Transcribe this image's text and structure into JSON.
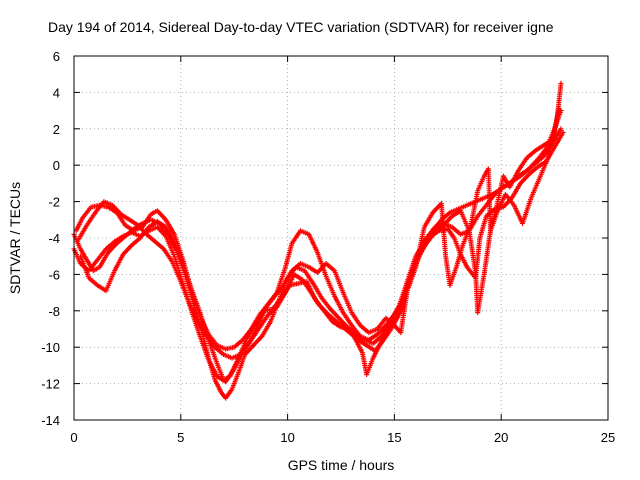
{
  "chart_data": {
    "type": "scatter",
    "title": "Day 194 of 2014, Sidereal Day-to-day VTEC variation (SDTVAR) for receiver igne",
    "xlabel": "GPS time / hours",
    "ylabel": "SDTVAR / TECUs",
    "xlim": [
      0,
      25
    ],
    "ylim": [
      -14,
      6
    ],
    "xticks": [
      0,
      5,
      10,
      15,
      20,
      25
    ],
    "yticks": [
      -14,
      -12,
      -10,
      -8,
      -6,
      -4,
      -2,
      0,
      2,
      4,
      6
    ],
    "grid": true,
    "marker": "+",
    "series": [
      {
        "name": "trace-a",
        "color": "#ff0000",
        "points": [
          [
            0.0,
            -3.8
          ],
          [
            0.3,
            -4.6
          ],
          [
            0.6,
            -5.2
          ],
          [
            0.9,
            -5.8
          ],
          [
            1.2,
            -5.6
          ],
          [
            1.6,
            -4.8
          ],
          [
            2.0,
            -4.3
          ],
          [
            2.4,
            -3.9
          ],
          [
            2.8,
            -3.5
          ],
          [
            3.2,
            -3.2
          ],
          [
            3.6,
            -3.0
          ],
          [
            4.0,
            -3.2
          ],
          [
            4.4,
            -3.8
          ],
          [
            4.8,
            -4.7
          ],
          [
            5.2,
            -6.0
          ],
          [
            5.6,
            -7.6
          ],
          [
            6.0,
            -9.2
          ],
          [
            6.3,
            -10.6
          ],
          [
            6.6,
            -11.8
          ],
          [
            6.9,
            -12.5
          ],
          [
            7.1,
            -12.8
          ],
          [
            7.4,
            -12.3
          ],
          [
            7.7,
            -11.4
          ],
          [
            8.0,
            -10.4
          ],
          [
            8.4,
            -9.9
          ],
          [
            8.8,
            -9.4
          ],
          [
            9.2,
            -8.6
          ],
          [
            9.6,
            -7.4
          ],
          [
            10.0,
            -6.2
          ],
          [
            10.4,
            -5.6
          ],
          [
            10.8,
            -5.8
          ],
          [
            11.2,
            -6.5
          ],
          [
            11.6,
            -7.3
          ],
          [
            12.0,
            -7.9
          ],
          [
            12.4,
            -8.4
          ],
          [
            12.8,
            -8.9
          ],
          [
            13.2,
            -9.3
          ],
          [
            13.6,
            -9.6
          ],
          [
            14.0,
            -9.8
          ],
          [
            14.4,
            -9.4
          ],
          [
            14.8,
            -8.6
          ],
          [
            15.2,
            -7.8
          ],
          [
            15.6,
            -6.4
          ],
          [
            16.0,
            -5.0
          ],
          [
            16.4,
            -4.2
          ],
          [
            16.8,
            -3.6
          ],
          [
            17.2,
            -3.0
          ],
          [
            17.6,
            -2.6
          ],
          [
            18.0,
            -2.4
          ],
          [
            18.4,
            -2.2
          ],
          [
            18.8,
            -2.0
          ],
          [
            19.2,
            -1.8
          ],
          [
            19.6,
            -1.6
          ],
          [
            20.0,
            -1.3
          ],
          [
            20.4,
            -1.0
          ],
          [
            20.8,
            -0.6
          ],
          [
            21.2,
            -0.3
          ],
          [
            21.6,
            0.1
          ],
          [
            22.0,
            0.5
          ],
          [
            22.4,
            1.2
          ],
          [
            22.8,
            2.0
          ]
        ]
      },
      {
        "name": "trace-b",
        "color": "#ff0000",
        "points": [
          [
            0.1,
            -3.6
          ],
          [
            0.4,
            -2.9
          ],
          [
            0.8,
            -2.3
          ],
          [
            1.2,
            -2.2
          ],
          [
            1.6,
            -2.3
          ],
          [
            2.0,
            -2.6
          ],
          [
            2.4,
            -3.3
          ],
          [
            2.8,
            -3.6
          ],
          [
            3.2,
            -3.4
          ],
          [
            3.6,
            -2.7
          ],
          [
            3.9,
            -2.5
          ],
          [
            4.3,
            -3.0
          ],
          [
            4.7,
            -3.8
          ],
          [
            5.1,
            -5.2
          ],
          [
            5.5,
            -6.9
          ],
          [
            5.9,
            -8.3
          ],
          [
            6.3,
            -9.3
          ],
          [
            6.7,
            -9.9
          ],
          [
            7.1,
            -10.1
          ],
          [
            7.5,
            -10.0
          ],
          [
            7.9,
            -9.6
          ],
          [
            8.3,
            -9.0
          ],
          [
            8.7,
            -8.2
          ],
          [
            9.1,
            -7.6
          ],
          [
            9.5,
            -7.0
          ],
          [
            9.9,
            -5.6
          ],
          [
            10.2,
            -4.3
          ],
          [
            10.6,
            -3.6
          ],
          [
            11.0,
            -3.8
          ],
          [
            11.4,
            -4.8
          ],
          [
            11.8,
            -6.1
          ],
          [
            12.2,
            -7.2
          ],
          [
            12.6,
            -8.1
          ],
          [
            13.0,
            -8.8
          ],
          [
            13.4,
            -9.4
          ],
          [
            13.8,
            -9.6
          ],
          [
            14.2,
            -9.3
          ],
          [
            14.6,
            -8.8
          ],
          [
            15.0,
            -8.2
          ],
          [
            15.3,
            -7.6
          ],
          [
            15.7,
            -6.3
          ],
          [
            16.1,
            -5.0
          ],
          [
            16.5,
            -4.0
          ],
          [
            16.9,
            -3.4
          ],
          [
            17.3,
            -3.2
          ],
          [
            17.7,
            -3.4
          ],
          [
            18.1,
            -3.8
          ],
          [
            18.5,
            -3.6
          ],
          [
            18.9,
            -2.8
          ],
          [
            19.3,
            -2.2
          ],
          [
            19.7,
            -1.6
          ],
          [
            20.1,
            -1.2
          ],
          [
            20.5,
            -0.9
          ],
          [
            20.9,
            -0.6
          ],
          [
            21.3,
            -0.2
          ],
          [
            21.7,
            0.3
          ],
          [
            22.1,
            0.9
          ],
          [
            22.5,
            2.0
          ],
          [
            22.8,
            3.0
          ]
        ]
      },
      {
        "name": "trace-c",
        "color": "#ff0000",
        "points": [
          [
            0.0,
            -4.6
          ],
          [
            0.3,
            -5.4
          ],
          [
            0.7,
            -5.8
          ],
          [
            1.1,
            -5.2
          ],
          [
            1.5,
            -4.6
          ],
          [
            1.9,
            -4.2
          ],
          [
            2.3,
            -3.9
          ],
          [
            2.7,
            -3.7
          ],
          [
            3.1,
            -3.9
          ],
          [
            3.5,
            -3.6
          ],
          [
            3.9,
            -3.4
          ],
          [
            4.3,
            -3.9
          ],
          [
            4.7,
            -5.0
          ],
          [
            5.1,
            -6.5
          ],
          [
            5.5,
            -8.0
          ],
          [
            5.9,
            -9.4
          ],
          [
            6.3,
            -10.7
          ],
          [
            6.7,
            -11.6
          ],
          [
            7.1,
            -11.9
          ],
          [
            7.5,
            -11.2
          ],
          [
            7.9,
            -10.2
          ],
          [
            8.3,
            -9.6
          ],
          [
            8.7,
            -8.9
          ],
          [
            9.1,
            -8.2
          ],
          [
            9.5,
            -7.8
          ],
          [
            9.9,
            -7.0
          ],
          [
            10.3,
            -6.0
          ],
          [
            10.7,
            -6.3
          ],
          [
            11.1,
            -7.0
          ],
          [
            11.5,
            -7.7
          ],
          [
            11.9,
            -8.2
          ],
          [
            12.3,
            -8.6
          ],
          [
            12.7,
            -9.0
          ],
          [
            13.1,
            -9.4
          ],
          [
            13.5,
            -10.3
          ],
          [
            13.7,
            -11.5
          ],
          [
            14.0,
            -10.6
          ],
          [
            14.3,
            -9.9
          ],
          [
            14.7,
            -9.0
          ],
          [
            15.1,
            -8.4
          ],
          [
            15.5,
            -7.2
          ],
          [
            15.9,
            -5.8
          ],
          [
            16.3,
            -4.6
          ],
          [
            16.7,
            -3.9
          ],
          [
            17.1,
            -3.6
          ],
          [
            17.5,
            -3.5
          ],
          [
            17.8,
            -4.0
          ],
          [
            18.1,
            -4.9
          ],
          [
            18.4,
            -5.6
          ],
          [
            18.8,
            -6.2
          ],
          [
            19.0,
            -4.0
          ],
          [
            19.3,
            -2.8
          ],
          [
            19.7,
            -2.4
          ],
          [
            20.1,
            -2.3
          ],
          [
            20.5,
            -1.8
          ],
          [
            20.9,
            -1.0
          ],
          [
            21.3,
            -0.5
          ],
          [
            21.7,
            -0.1
          ],
          [
            22.1,
            0.2
          ],
          [
            22.5,
            1.0
          ],
          [
            22.9,
            1.8
          ]
        ]
      },
      {
        "name": "trace-d",
        "color": "#ff0000",
        "points": [
          [
            0.2,
            -4.1
          ],
          [
            0.6,
            -3.3
          ],
          [
            1.0,
            -2.6
          ],
          [
            1.4,
            -2.0
          ],
          [
            1.8,
            -2.2
          ],
          [
            2.2,
            -2.7
          ],
          [
            2.6,
            -3.0
          ],
          [
            3.0,
            -3.3
          ],
          [
            3.4,
            -3.8
          ],
          [
            3.8,
            -4.2
          ],
          [
            4.2,
            -4.6
          ],
          [
            4.6,
            -5.3
          ],
          [
            5.0,
            -6.4
          ],
          [
            5.4,
            -7.6
          ],
          [
            5.8,
            -8.6
          ],
          [
            6.2,
            -9.4
          ],
          [
            6.6,
            -10.0
          ],
          [
            7.0,
            -10.4
          ],
          [
            7.4,
            -10.6
          ],
          [
            7.8,
            -10.4
          ],
          [
            8.2,
            -9.8
          ],
          [
            8.6,
            -8.8
          ],
          [
            9.0,
            -7.8
          ],
          [
            9.4,
            -7.2
          ],
          [
            9.8,
            -6.6
          ],
          [
            10.2,
            -5.8
          ],
          [
            10.6,
            -5.4
          ],
          [
            11.0,
            -5.6
          ],
          [
            11.4,
            -5.9
          ],
          [
            11.8,
            -5.4
          ],
          [
            12.2,
            -5.8
          ],
          [
            12.6,
            -7.0
          ],
          [
            13.0,
            -8.1
          ],
          [
            13.4,
            -8.8
          ],
          [
            13.8,
            -9.2
          ],
          [
            14.2,
            -9.0
          ],
          [
            14.6,
            -8.4
          ],
          [
            15.0,
            -8.8
          ],
          [
            15.3,
            -9.2
          ],
          [
            15.6,
            -6.9
          ],
          [
            16.0,
            -5.6
          ],
          [
            16.4,
            -3.4
          ],
          [
            16.8,
            -2.6
          ],
          [
            17.2,
            -2.1
          ],
          [
            17.4,
            -5.0
          ],
          [
            17.6,
            -6.6
          ],
          [
            17.9,
            -5.6
          ],
          [
            18.2,
            -4.4
          ],
          [
            18.6,
            -3.2
          ],
          [
            18.9,
            -1.4
          ],
          [
            19.2,
            -0.6
          ],
          [
            19.4,
            -0.2
          ],
          [
            19.5,
            -3.6
          ],
          [
            19.8,
            -2.6
          ],
          [
            20.2,
            -1.6
          ],
          [
            20.6,
            -2.2
          ],
          [
            21.0,
            -3.2
          ],
          [
            21.4,
            -1.8
          ],
          [
            21.8,
            -0.7
          ],
          [
            22.2,
            0.4
          ],
          [
            22.6,
            2.4
          ],
          [
            22.8,
            4.5
          ]
        ]
      },
      {
        "name": "trace-e",
        "color": "#ff0000",
        "points": [
          [
            0.3,
            -5.0
          ],
          [
            0.7,
            -6.2
          ],
          [
            1.1,
            -6.6
          ],
          [
            1.5,
            -6.9
          ],
          [
            1.9,
            -5.8
          ],
          [
            2.3,
            -4.9
          ],
          [
            2.7,
            -4.4
          ],
          [
            3.1,
            -4.0
          ],
          [
            3.5,
            -3.4
          ],
          [
            3.9,
            -3.1
          ],
          [
            4.3,
            -3.4
          ],
          [
            4.7,
            -4.2
          ],
          [
            5.1,
            -5.4
          ],
          [
            5.5,
            -6.8
          ],
          [
            5.9,
            -8.1
          ],
          [
            6.3,
            -9.6
          ],
          [
            6.7,
            -10.9
          ],
          [
            7.0,
            -11.8
          ],
          [
            7.3,
            -11.6
          ],
          [
            7.7,
            -10.6
          ],
          [
            8.1,
            -9.5
          ],
          [
            8.5,
            -8.7
          ],
          [
            8.9,
            -8.0
          ],
          [
            9.3,
            -7.9
          ],
          [
            9.7,
            -7.3
          ],
          [
            10.1,
            -6.6
          ],
          [
            10.5,
            -6.5
          ],
          [
            10.9,
            -6.4
          ],
          [
            11.3,
            -7.4
          ],
          [
            11.7,
            -8.0
          ],
          [
            12.1,
            -8.6
          ],
          [
            12.5,
            -8.9
          ],
          [
            12.9,
            -9.0
          ],
          [
            13.3,
            -9.6
          ],
          [
            13.7,
            -9.9
          ],
          [
            14.1,
            -10.2
          ],
          [
            14.5,
            -9.6
          ],
          [
            14.9,
            -8.9
          ],
          [
            15.3,
            -8.0
          ],
          [
            15.7,
            -6.5
          ],
          [
            16.1,
            -5.1
          ],
          [
            16.5,
            -4.3
          ],
          [
            16.9,
            -3.7
          ],
          [
            17.3,
            -3.3
          ],
          [
            17.7,
            -2.8
          ],
          [
            18.1,
            -2.5
          ],
          [
            18.5,
            -3.6
          ],
          [
            18.8,
            -5.9
          ],
          [
            18.9,
            -8.1
          ],
          [
            19.2,
            -6.0
          ],
          [
            19.5,
            -3.6
          ],
          [
            19.8,
            -2.2
          ],
          [
            20.1,
            -0.6
          ],
          [
            20.4,
            -1.2
          ],
          [
            20.8,
            -0.3
          ],
          [
            21.2,
            0.4
          ],
          [
            21.6,
            0.8
          ],
          [
            22.0,
            1.1
          ],
          [
            22.4,
            1.4
          ],
          [
            22.7,
            3.1
          ]
        ]
      }
    ]
  }
}
